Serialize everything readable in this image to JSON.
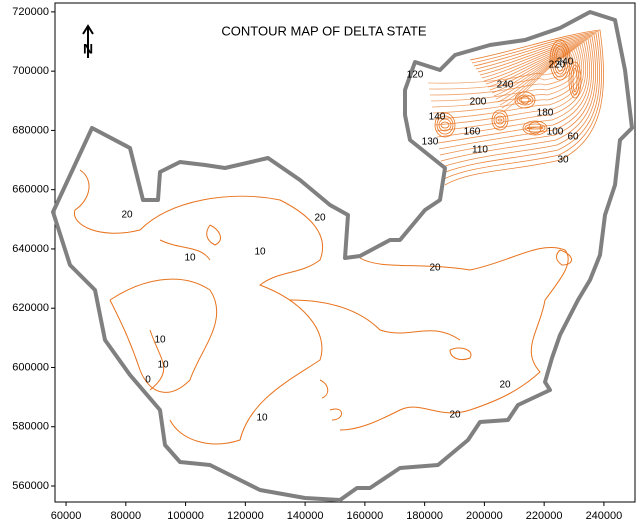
{
  "map": {
    "title": "CONTOUR MAP OF DELTA STATE",
    "north_label": "N",
    "xlim": [
      56300,
      250400
    ],
    "ylim": [
      554600,
      723000
    ],
    "xticks": [
      60000,
      80000,
      100000,
      120000,
      140000,
      160000,
      180000,
      200000,
      220000,
      240000
    ],
    "yticks": [
      560000,
      580000,
      600000,
      620000,
      640000,
      660000,
      680000,
      700000,
      720000
    ],
    "contour_color": "#e8731e",
    "boundary_color": "#808080",
    "contour_labels": [
      "20",
      "20",
      "10",
      "10",
      "20",
      "10",
      "10",
      "0",
      "10",
      "20",
      "20",
      "120",
      "140",
      "130",
      "200",
      "240",
      "160",
      "110",
      "180",
      "100",
      "30",
      "60",
      "220",
      "240"
    ]
  }
}
